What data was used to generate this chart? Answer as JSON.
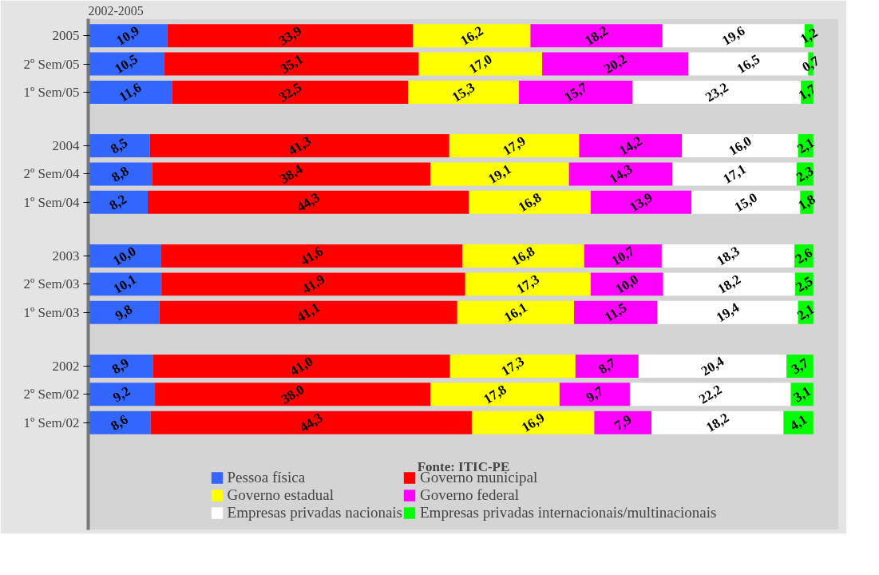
{
  "chart_data": {
    "type": "bar",
    "orientation": "horizontal",
    "stacked": true,
    "title": "2002-2005",
    "categories": [
      "2005",
      "2º Sem/05",
      "1º Sem/05",
      "2004",
      "2º Sem/04",
      "1º Sem/04",
      "2003",
      "2º Sem/03",
      "1º Sem/03",
      "2002",
      "2º Sem/02",
      "1º Sem/02"
    ],
    "series": [
      {
        "name": "Pessoa física",
        "color": "#3366ff",
        "values": [
          10.9,
          10.5,
          11.6,
          8.5,
          8.8,
          8.2,
          10.0,
          10.1,
          9.8,
          8.9,
          9.2,
          8.6
        ],
        "value_labels": [
          "10,9",
          "10,5",
          "11,6",
          "8,5",
          "8,8",
          "8,2",
          "10,0",
          "10,1",
          "9,8",
          "8,9",
          "9,2",
          "8,6"
        ]
      },
      {
        "name": "Governo municipal",
        "color": "#ff0000",
        "values": [
          33.9,
          35.1,
          32.5,
          41.3,
          38.4,
          44.3,
          41.6,
          41.9,
          41.1,
          41.0,
          38.0,
          44.3
        ],
        "value_labels": [
          "33,9",
          "35,1",
          "32,5",
          "41,3",
          "38,4",
          "44,3",
          "41,6",
          "41,9",
          "41,1",
          "41,0",
          "38,0",
          "44,3"
        ]
      },
      {
        "name": "Governo estadual",
        "color": "#ffff00",
        "values": [
          16.2,
          17.0,
          15.3,
          17.9,
          19.1,
          16.8,
          16.8,
          17.3,
          16.1,
          17.3,
          17.8,
          16.9
        ],
        "value_labels": [
          "16,2",
          "17,0",
          "15,3",
          "17,9",
          "19,1",
          "16,8",
          "16,8",
          "17,3",
          "16,1",
          "17,3",
          "17,8",
          "16,9"
        ]
      },
      {
        "name": "Governo federal",
        "color": "#ff00ff",
        "values": [
          18.2,
          20.2,
          15.7,
          14.2,
          14.3,
          13.9,
          10.7,
          10.0,
          11.5,
          8.7,
          9.7,
          7.9
        ],
        "value_labels": [
          "18,2",
          "20,2",
          "15,7",
          "14,2",
          "14,3",
          "13,9",
          "10,7",
          "10,0",
          "11,5",
          "8,7",
          "9,7",
          "7,9"
        ]
      },
      {
        "name": "Empresas privadas nacionais",
        "color": "#ffffff",
        "values": [
          19.6,
          16.5,
          23.2,
          16.0,
          17.1,
          15.0,
          18.3,
          18.2,
          19.4,
          20.4,
          22.2,
          18.2
        ],
        "value_labels": [
          "19,6",
          "16,5",
          "23,2",
          "16,0",
          "17,1",
          "15,0",
          "18,3",
          "18,2",
          "19,4",
          "20,4",
          "22,2",
          "18,2"
        ]
      },
      {
        "name": "Empresas privadas internacionais/multinacionais",
        "color": "#00ff00",
        "values": [
          1.2,
          0.7,
          1.7,
          2.1,
          2.3,
          1.8,
          2.6,
          2.5,
          2.1,
          3.7,
          3.1,
          4.1
        ],
        "value_labels": [
          "1,2",
          "0,7",
          "1,7",
          "2,1",
          "2,3",
          "1,8",
          "2,6",
          "2,5",
          "2,1",
          "3,7",
          "3,1",
          "4,1"
        ]
      }
    ],
    "annotations": [
      "Fonte: ITIC-PE"
    ],
    "legend": "bottom",
    "grid": false
  }
}
